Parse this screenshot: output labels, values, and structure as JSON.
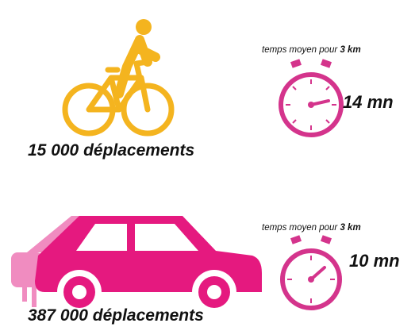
{
  "rows": [
    {
      "count": "15 000 déplacements",
      "caption": "temps moyen pour",
      "distance": "3 km",
      "time": "14 mn"
    },
    {
      "count": "387 000 déplacements",
      "caption": "temps moyen pour",
      "distance": "3 km",
      "time": "10 mn"
    }
  ]
}
